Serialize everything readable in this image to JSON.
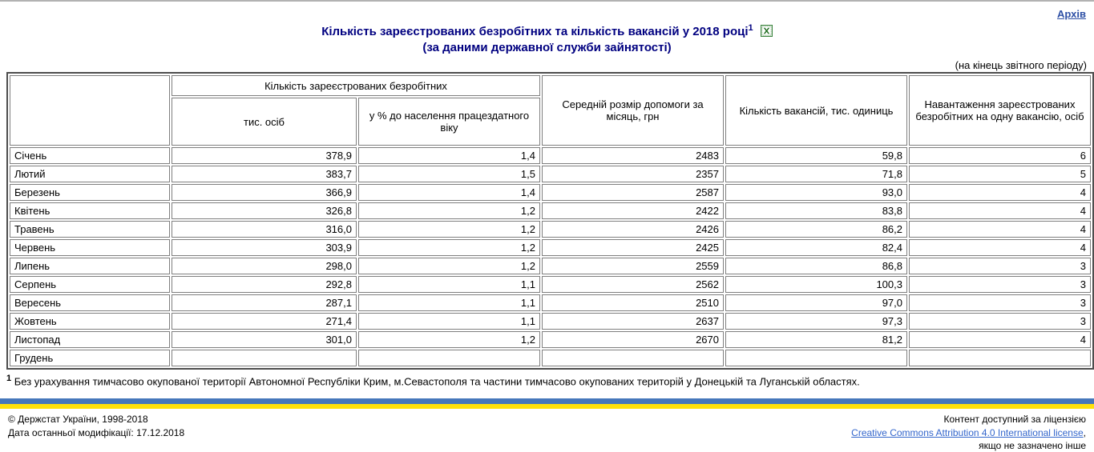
{
  "header": {
    "archive_label": "Архів",
    "title_line1": "Кількість зареєстрованих безробітних та кількість вакансій у 2018 році",
    "title_footnote_ref": "1",
    "title_line2": "(за даними державної служби зайнятості)",
    "excel_icon": "excel-download-icon",
    "period_note": "(на кінець звітного періоду)"
  },
  "colors": {
    "title_navy": "#000080",
    "archive_link_blue": "#2d4fa5",
    "cc_link_blue": "#3366cc",
    "flag_blue": "#4677bb",
    "flag_yellow": "#ffe10a"
  },
  "table": {
    "col_group_unemployed": "Кількість зареєстрованих безробітних",
    "col_thousand": "тис. осіб",
    "col_pct": "у % до населення працездатного віку",
    "col_benefit": "Середній розмір допомоги за місяць, грн",
    "col_vacancies": "Кількість вакансій, тис. одиниць",
    "col_load": "Навантаження зареєстрованих безробітних на одну вакансію, осіб",
    "rows": [
      {
        "month": "Січень",
        "thousand": "378,9",
        "pct": "1,4",
        "benefit": "2483",
        "vacancies": "59,8",
        "load": "6"
      },
      {
        "month": "Лютий",
        "thousand": "383,7",
        "pct": "1,5",
        "benefit": "2357",
        "vacancies": "71,8",
        "load": "5"
      },
      {
        "month": "Березень",
        "thousand": "366,9",
        "pct": "1,4",
        "benefit": "2587",
        "vacancies": "93,0",
        "load": "4"
      },
      {
        "month": "Квітень",
        "thousand": "326,8",
        "pct": "1,2",
        "benefit": "2422",
        "vacancies": "83,8",
        "load": "4"
      },
      {
        "month": "Травень",
        "thousand": "316,0",
        "pct": "1,2",
        "benefit": "2426",
        "vacancies": "86,2",
        "load": "4"
      },
      {
        "month": "Червень",
        "thousand": "303,9",
        "pct": "1,2",
        "benefit": "2425",
        "vacancies": "82,4",
        "load": "4"
      },
      {
        "month": "Липень",
        "thousand": "298,0",
        "pct": "1,2",
        "benefit": "2559",
        "vacancies": "86,8",
        "load": "3"
      },
      {
        "month": "Серпень",
        "thousand": "292,8",
        "pct": "1,1",
        "benefit": "2562",
        "vacancies": "100,3",
        "load": "3"
      },
      {
        "month": "Вересень",
        "thousand": "287,1",
        "pct": "1,1",
        "benefit": "2510",
        "vacancies": "97,0",
        "load": "3"
      },
      {
        "month": "Жовтень",
        "thousand": "271,4",
        "pct": "1,1",
        "benefit": "2637",
        "vacancies": "97,3",
        "load": "3"
      },
      {
        "month": "Листопад",
        "thousand": "301,0",
        "pct": "1,2",
        "benefit": "2670",
        "vacancies": "81,2",
        "load": "4"
      },
      {
        "month": "Грудень",
        "thousand": "",
        "pct": "",
        "benefit": "",
        "vacancies": "",
        "load": ""
      }
    ]
  },
  "footnote": {
    "ref": "1",
    "text": " Без урахування тимчасово окупованої території Автономної Республіки Крим, м.Севастополя та частини тимчасово окупованих територій у Донецькій та Луганській областях."
  },
  "footer": {
    "copyright": "© Держстат України, 1998-2018",
    "modified": "Дата останньої модифікації: 17.12.2018",
    "license_line1": "Контент доступний за ліцензією",
    "license_link": "Creative Commons Attribution 4.0 International license",
    "license_suffix": ",",
    "license_line3": "якщо не зазначено інше"
  }
}
